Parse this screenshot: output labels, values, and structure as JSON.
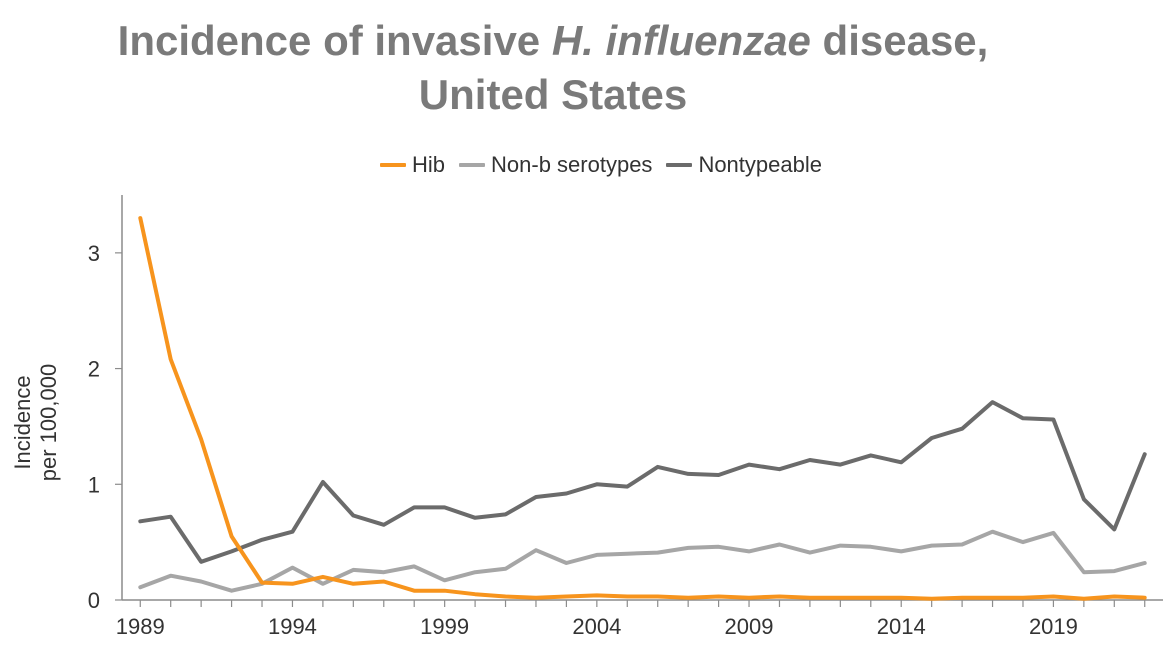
{
  "title": {
    "line1_prefix": "Incidence of invasive ",
    "line1_italic": "H. influenzae",
    "line1_suffix": " disease,",
    "line2": "United States"
  },
  "chart_data": {
    "type": "line",
    "x": [
      1989,
      1990,
      1991,
      1992,
      1993,
      1994,
      1995,
      1996,
      1997,
      1998,
      1999,
      2000,
      2001,
      2002,
      2003,
      2004,
      2005,
      2006,
      2007,
      2008,
      2009,
      2010,
      2011,
      2012,
      2013,
      2014,
      2015,
      2016,
      2017,
      2018,
      2019,
      2020,
      2021,
      2022
    ],
    "series": [
      {
        "name": "Hib",
        "color": "#f7941d",
        "values": [
          3.3,
          2.08,
          1.39,
          0.55,
          0.15,
          0.14,
          0.2,
          0.14,
          0.16,
          0.08,
          0.08,
          0.05,
          0.03,
          0.02,
          0.03,
          0.04,
          0.03,
          0.03,
          0.02,
          0.03,
          0.02,
          0.03,
          0.02,
          0.02,
          0.02,
          0.02,
          0.01,
          0.02,
          0.02,
          0.02,
          0.03,
          0.01,
          0.03,
          0.02
        ]
      },
      {
        "name": "Non-b serotypes",
        "color": "#a6a6a6",
        "values": [
          0.11,
          0.21,
          0.16,
          0.08,
          0.14,
          0.28,
          0.14,
          0.26,
          0.24,
          0.29,
          0.17,
          0.24,
          0.27,
          0.43,
          0.32,
          0.39,
          0.4,
          0.41,
          0.45,
          0.46,
          0.42,
          0.48,
          0.41,
          0.47,
          0.46,
          0.42,
          0.47,
          0.48,
          0.59,
          0.5,
          0.58,
          0.24,
          0.25,
          0.32
        ]
      },
      {
        "name": "Nontypeable",
        "color": "#6b6b6b",
        "values": [
          0.68,
          0.72,
          0.33,
          0.42,
          0.52,
          0.59,
          1.02,
          0.73,
          0.65,
          0.8,
          0.8,
          0.71,
          0.74,
          0.89,
          0.92,
          1.0,
          0.98,
          1.15,
          1.09,
          1.08,
          1.17,
          1.13,
          1.21,
          1.17,
          1.25,
          1.19,
          1.4,
          1.48,
          1.71,
          1.57,
          1.56,
          0.87,
          0.61,
          1.26
        ]
      }
    ],
    "x_tick_labels": [
      "1989",
      "1994",
      "1999",
      "2004",
      "2009",
      "2014",
      "2019"
    ],
    "y_tick_labels": [
      "0",
      "1",
      "2",
      "3"
    ],
    "ylabel_line1": "Incidence",
    "ylabel_line2": "per 100,000",
    "ylim": [
      0,
      3.5
    ],
    "xlim": [
      1988.4,
      2022.6
    ],
    "legend_position": "top",
    "grid": false
  }
}
